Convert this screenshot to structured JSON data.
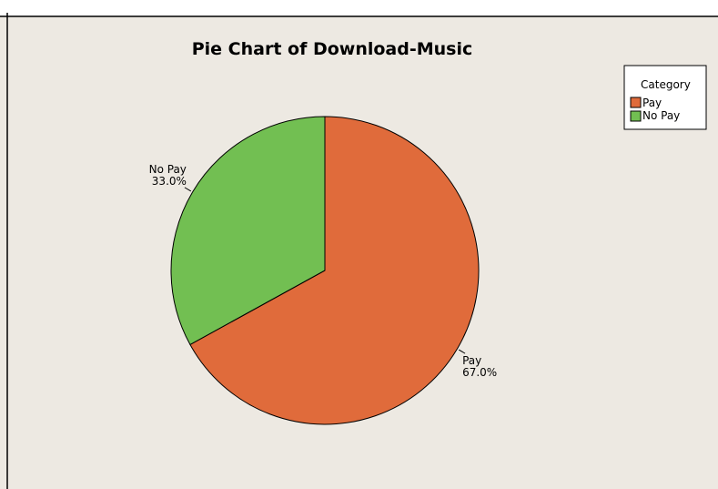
{
  "chart_data": {
    "type": "pie",
    "title": "Pie Chart of Download-Music",
    "categories": [
      "Pay",
      "No Pay"
    ],
    "values": [
      67.0,
      33.0
    ],
    "value_labels": [
      "67.0%",
      "33.0%"
    ],
    "colors": [
      "#E06B3B",
      "#72BF52"
    ],
    "start_angle": "12 o'clock",
    "direction": "clockwise",
    "legend": {
      "title": "Category",
      "position": "top-right",
      "entries": [
        "Pay",
        "No Pay"
      ]
    },
    "background_color": "#EDE9E2"
  }
}
